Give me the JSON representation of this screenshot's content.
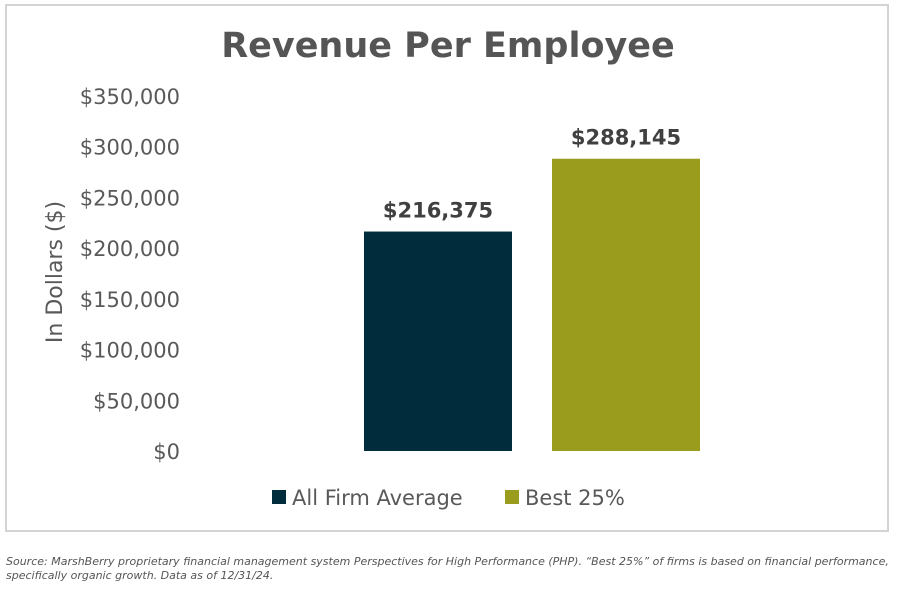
{
  "chart_data": {
    "type": "bar",
    "title": "Revenue Per Employee",
    "ylabel": "In Dollars ($)",
    "xlabel": "",
    "ylim": [
      0,
      350000
    ],
    "yticks": [
      0,
      50000,
      100000,
      150000,
      200000,
      250000,
      300000,
      350000
    ],
    "ytick_labels": [
      "$0",
      "$50,000",
      "$100,000",
      "$150,000",
      "$200,000",
      "$250,000",
      "$300,000",
      "$350,000"
    ],
    "grid": false,
    "legend_position": "bottom",
    "series": [
      {
        "name": "All Firm Average",
        "value": 216375,
        "label": "$216,375",
        "color": "#002c3c"
      },
      {
        "name": "Best 25%",
        "value": 288145,
        "label": "$288,145",
        "color": "#999c1c"
      }
    ]
  },
  "source_note": "Source: MarshBerry proprietary financial management system Perspectives for High Performance (PHP). “Best 25%” of firms is based on financial performance, specifically organic growth. Data as of 12/31/24."
}
